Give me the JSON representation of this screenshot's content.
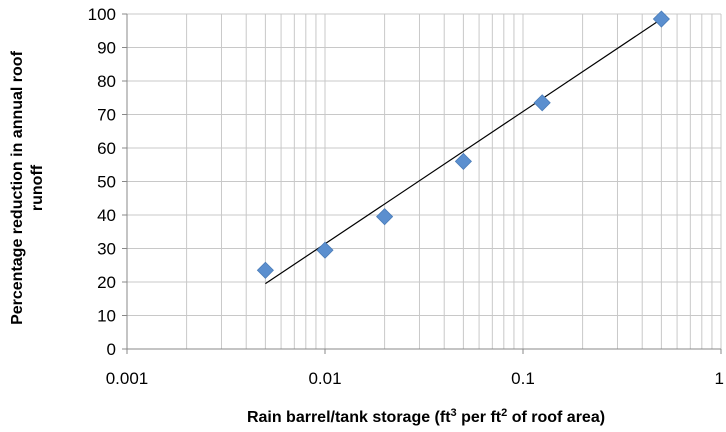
{
  "chart_data": {
    "type": "scatter",
    "title": "",
    "xlabel_main": "Rain barrel/tank storage (ft",
    "xlabel_sup1": "3",
    "xlabel_mid": " per ft",
    "xlabel_sup2": "2",
    "xlabel_end": " of roof area)",
    "ylabel_line1": "Percentage reduction in annual roof",
    "ylabel_line2": "runoff",
    "x_scale": "log",
    "xlim": [
      0.001,
      1
    ],
    "ylim": [
      0,
      100
    ],
    "x_ticks": [
      0.001,
      0.01,
      0.1,
      1
    ],
    "x_tick_labels": [
      "0.001",
      "0.01",
      "0.1",
      "1"
    ],
    "y_ticks": [
      0,
      10,
      20,
      30,
      40,
      50,
      60,
      70,
      80,
      90,
      100
    ],
    "y_tick_labels": [
      "0",
      "10",
      "20",
      "30",
      "40",
      "50",
      "60",
      "70",
      "80",
      "90",
      "100"
    ],
    "grid": true,
    "series": [
      {
        "marker": "diamond",
        "color": "#5b8fcf",
        "x": [
          0.005,
          0.01,
          0.02,
          0.05,
          0.125,
          0.5
        ],
        "y": [
          23.5,
          29.5,
          39.5,
          56,
          73.5,
          98.5
        ]
      }
    ],
    "trendline": {
      "type": "logarithmic",
      "color": "#000000",
      "x": [
        0.005,
        0.5
      ],
      "y": [
        19.5,
        98.5
      ]
    }
  }
}
